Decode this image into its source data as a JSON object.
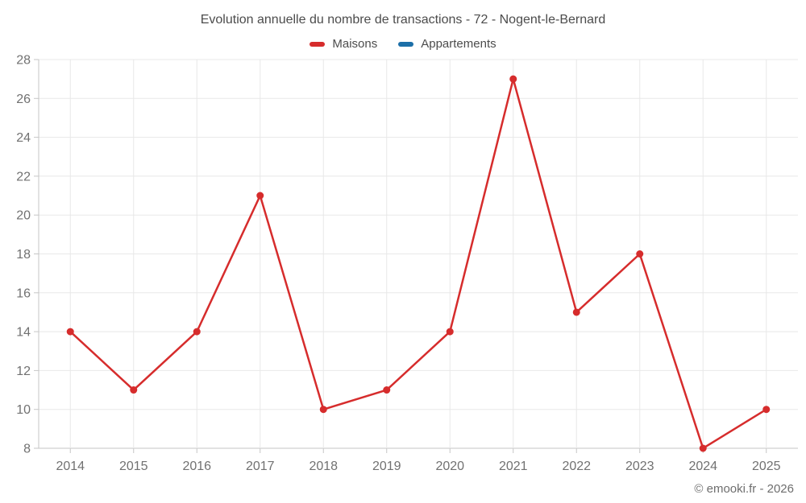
{
  "title": "Evolution annuelle du nombre de transactions - 72 - Nogent-le-Bernard",
  "legend": [
    {
      "label": "Maisons",
      "color": "#d62c2c"
    },
    {
      "label": "Appartements",
      "color": "#1c6fa8"
    }
  ],
  "footer": "© emooki.fr - 2026",
  "colors": {
    "gridline": "#e8e8e8",
    "axis": "#c6c6c6",
    "tick_label": "#717171",
    "title_text": "#4c4c4c"
  },
  "chart_data": {
    "type": "line",
    "title": "Evolution annuelle du nombre de transactions - 72 - Nogent-le-Bernard",
    "categories": [
      "2014",
      "2015",
      "2016",
      "2017",
      "2018",
      "2019",
      "2020",
      "2021",
      "2022",
      "2023",
      "2024",
      "2025"
    ],
    "series": [
      {
        "name": "Maisons",
        "color": "#d62c2c",
        "values": [
          14,
          11,
          14,
          21,
          10,
          11,
          14,
          27,
          15,
          18,
          8,
          10
        ]
      },
      {
        "name": "Appartements",
        "color": "#1c6fa8",
        "values": []
      }
    ],
    "xlabel": "",
    "ylabel": "",
    "ylim": [
      8,
      28
    ],
    "ytick_step": 2,
    "grid": true,
    "legend_position": "top"
  }
}
